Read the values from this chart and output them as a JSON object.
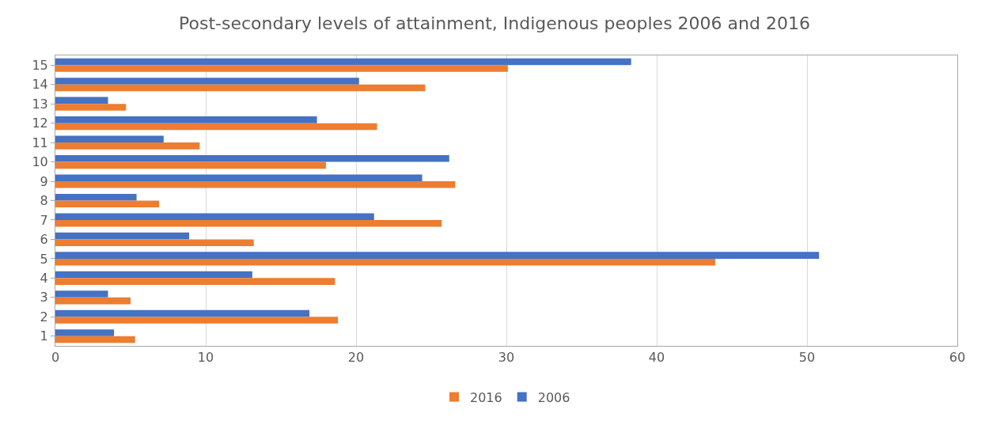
{
  "chart_data": {
    "type": "bar",
    "orientation": "horizontal",
    "title": "Post-secondary levels of attainment, Indigenous peoples 2006 and 2016",
    "categories": [
      "15",
      "14",
      "13",
      "12",
      "11",
      "10",
      "9",
      "8",
      "7",
      "6",
      "5",
      "4",
      "3",
      "2",
      "1"
    ],
    "series": [
      {
        "name": "2006",
        "color": "#4472c4",
        "values": [
          38.3,
          20.2,
          3.5,
          17.4,
          7.2,
          26.2,
          24.4,
          5.4,
          21.2,
          8.9,
          50.8,
          13.1,
          3.5,
          16.9,
          3.9
        ]
      },
      {
        "name": "2016",
        "color": "#ed7d31",
        "values": [
          30.1,
          24.6,
          4.7,
          21.4,
          9.6,
          18.0,
          26.6,
          6.9,
          25.7,
          13.2,
          43.9,
          18.6,
          5.0,
          18.8,
          5.3
        ]
      }
    ],
    "xlim": [
      0,
      60
    ],
    "xticks": [
      0,
      10,
      20,
      30,
      40,
      50,
      60
    ],
    "grid": "x",
    "legend": "bottom"
  }
}
